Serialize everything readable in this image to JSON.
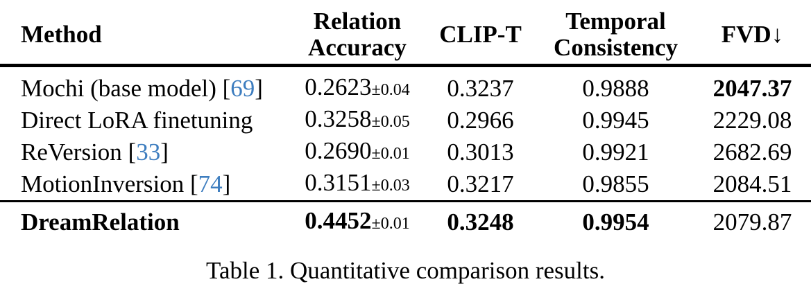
{
  "page": {
    "background": "#ffffff",
    "text_color": "#000000",
    "citation_color": "#3d7dbf"
  },
  "table": {
    "header": {
      "method": "Method",
      "relation_line1": "Relation",
      "relation_line2": "Accuracy",
      "clip_t": "CLIP-T",
      "temporal_line1": "Temporal",
      "temporal_line2": "Consistency",
      "fvd": "FVD",
      "fvd_arrow": "↓"
    },
    "rows": [
      {
        "method": "Mochi (base model)",
        "citation": "69",
        "relation_accuracy": "0.2623",
        "relation_accuracy_std": "±0.04",
        "clip_t": "0.3237",
        "temporal_consistency": "0.9888",
        "fvd": "2047.37",
        "bold": {
          "method": false,
          "relation_accuracy": false,
          "clip_t": false,
          "temporal_consistency": false,
          "fvd": true
        }
      },
      {
        "method": "Direct LoRA finetuning",
        "citation": null,
        "relation_accuracy": "0.3258",
        "relation_accuracy_std": "±0.05",
        "clip_t": "0.2966",
        "temporal_consistency": "0.9945",
        "fvd": "2229.08",
        "bold": {
          "method": false,
          "relation_accuracy": false,
          "clip_t": false,
          "temporal_consistency": false,
          "fvd": false
        }
      },
      {
        "method": "ReVersion",
        "citation": "33",
        "relation_accuracy": "0.2690",
        "relation_accuracy_std": "±0.01",
        "clip_t": "0.3013",
        "temporal_consistency": "0.9921",
        "fvd": "2682.69",
        "bold": {
          "method": false,
          "relation_accuracy": false,
          "clip_t": false,
          "temporal_consistency": false,
          "fvd": false
        }
      },
      {
        "method": "MotionInversion",
        "citation": "74",
        "relation_accuracy": "0.3151",
        "relation_accuracy_std": "±0.03",
        "clip_t": "0.3217",
        "temporal_consistency": "0.9855",
        "fvd": "2084.51",
        "bold": {
          "method": false,
          "relation_accuracy": false,
          "clip_t": false,
          "temporal_consistency": false,
          "fvd": false
        }
      },
      {
        "method": "DreamRelation",
        "citation": null,
        "relation_accuracy": "0.4452",
        "relation_accuracy_std": "±0.01",
        "clip_t": "0.3248",
        "temporal_consistency": "0.9954",
        "fvd": "2079.87",
        "bold": {
          "method": true,
          "relation_accuracy": true,
          "clip_t": true,
          "temporal_consistency": true,
          "fvd": false
        }
      }
    ]
  },
  "caption": "Table 1. Quantitative comparison results."
}
